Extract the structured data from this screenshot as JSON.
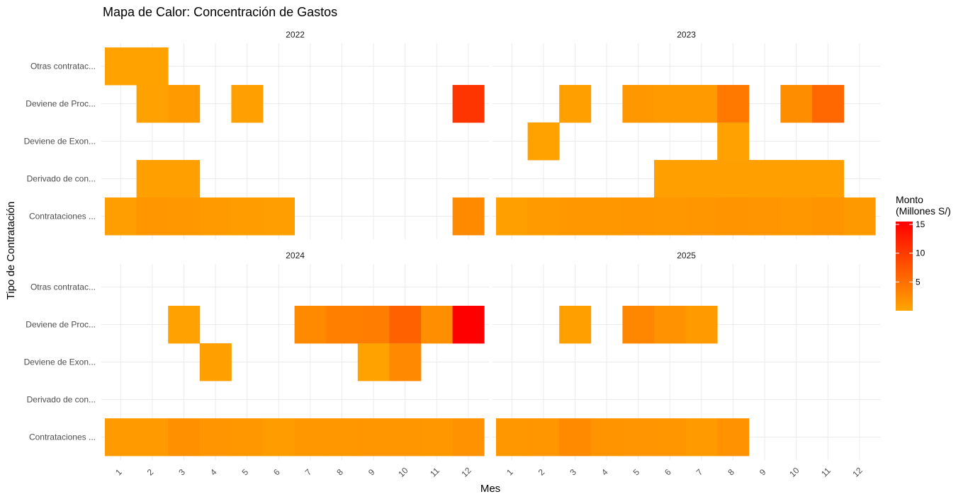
{
  "chart_data": {
    "type": "heatmap",
    "title": "Mapa de Calor: Concentración de Gastos",
    "xlabel": "Mes",
    "ylabel": "Tipo de Contratación",
    "x_categories": [
      "1",
      "2",
      "3",
      "4",
      "5",
      "6",
      "7",
      "8",
      "9",
      "10",
      "11",
      "12"
    ],
    "y_categories": [
      "Otras contratac...",
      "Deviene de Proc...",
      "Deviene de Exon...",
      "Derivado de con...",
      "Contrataciones ..."
    ],
    "legend": {
      "title": "Monto\n(Millones S/)",
      "ticks": [
        5,
        10,
        15
      ],
      "min": 0,
      "max": 15.5,
      "low_color": "#FFA500",
      "high_color": "#FF0000",
      "placement": "right"
    },
    "panels": [
      {
        "label": "2022",
        "cells": [
          {
            "type": "Otras contratac...",
            "month": 1,
            "value": 0.3
          },
          {
            "type": "Otras contratac...",
            "month": 2,
            "value": 0.3
          },
          {
            "type": "Deviene de Proc...",
            "month": 2,
            "value": 0.4
          },
          {
            "type": "Deviene de Proc...",
            "month": 3,
            "value": 0.9
          },
          {
            "type": "Deviene de Proc...",
            "month": 5,
            "value": 0.6
          },
          {
            "type": "Deviene de Proc...",
            "month": 12,
            "value": 10.5
          },
          {
            "type": "Derivado de con...",
            "month": 2,
            "value": 0.5
          },
          {
            "type": "Derivado de con...",
            "month": 3,
            "value": 0.5
          },
          {
            "type": "Contrataciones ...",
            "month": 1,
            "value": 0.7
          },
          {
            "type": "Contrataciones ...",
            "month": 2,
            "value": 1.4
          },
          {
            "type": "Contrataciones ...",
            "month": 3,
            "value": 1.2
          },
          {
            "type": "Contrataciones ...",
            "month": 4,
            "value": 0.9
          },
          {
            "type": "Contrataciones ...",
            "month": 5,
            "value": 0.8
          },
          {
            "type": "Contrataciones ...",
            "month": 6,
            "value": 0.7
          },
          {
            "type": "Contrataciones ...",
            "month": 12,
            "value": 2.5
          }
        ]
      },
      {
        "label": "2023",
        "cells": [
          {
            "type": "Deviene de Proc...",
            "month": 3,
            "value": 0.5
          },
          {
            "type": "Deviene de Proc...",
            "month": 5,
            "value": 1.2
          },
          {
            "type": "Deviene de Proc...",
            "month": 6,
            "value": 0.9
          },
          {
            "type": "Deviene de Proc...",
            "month": 7,
            "value": 0.9
          },
          {
            "type": "Deviene de Proc...",
            "month": 8,
            "value": 4.2
          },
          {
            "type": "Deviene de Proc...",
            "month": 10,
            "value": 2.3
          },
          {
            "type": "Deviene de Proc...",
            "month": 11,
            "value": 5.8
          },
          {
            "type": "Deviene de Exon...",
            "month": 2,
            "value": 0.3
          },
          {
            "type": "Deviene de Exon...",
            "month": 8,
            "value": 0.4
          },
          {
            "type": "Derivado de con...",
            "month": 6,
            "value": 0.5
          },
          {
            "type": "Derivado de con...",
            "month": 7,
            "value": 0.5
          },
          {
            "type": "Derivado de con...",
            "month": 8,
            "value": 0.6
          },
          {
            "type": "Derivado de con...",
            "month": 9,
            "value": 0.5
          },
          {
            "type": "Derivado de con...",
            "month": 10,
            "value": 0.5
          },
          {
            "type": "Derivado de con...",
            "month": 11,
            "value": 0.5
          },
          {
            "type": "Contrataciones ...",
            "month": 1,
            "value": 0.6
          },
          {
            "type": "Contrataciones ...",
            "month": 2,
            "value": 0.9
          },
          {
            "type": "Contrataciones ...",
            "month": 3,
            "value": 1.2
          },
          {
            "type": "Contrataciones ...",
            "month": 4,
            "value": 1.3
          },
          {
            "type": "Contrataciones ...",
            "month": 5,
            "value": 1.4
          },
          {
            "type": "Contrataciones ...",
            "month": 6,
            "value": 1.3
          },
          {
            "type": "Contrataciones ...",
            "month": 7,
            "value": 1.4
          },
          {
            "type": "Contrataciones ...",
            "month": 8,
            "value": 1.6
          },
          {
            "type": "Contrataciones ...",
            "month": 9,
            "value": 1.5
          },
          {
            "type": "Contrataciones ...",
            "month": 10,
            "value": 1.3
          },
          {
            "type": "Contrataciones ...",
            "month": 11,
            "value": 1.7
          },
          {
            "type": "Contrataciones ...",
            "month": 12,
            "value": 1.1
          }
        ]
      },
      {
        "label": "2024",
        "cells": [
          {
            "type": "Deviene de Proc...",
            "month": 3,
            "value": 0.4
          },
          {
            "type": "Deviene de Proc...",
            "month": 7,
            "value": 2.5
          },
          {
            "type": "Deviene de Proc...",
            "month": 8,
            "value": 3.5
          },
          {
            "type": "Deviene de Proc...",
            "month": 9,
            "value": 3.8
          },
          {
            "type": "Deviene de Proc...",
            "month": 10,
            "value": 6.5
          },
          {
            "type": "Deviene de Proc...",
            "month": 11,
            "value": 2.1
          },
          {
            "type": "Deviene de Proc...",
            "month": 12,
            "value": 15.5
          },
          {
            "type": "Deviene de Exon...",
            "month": 4,
            "value": 0.5
          },
          {
            "type": "Deviene de Exon...",
            "month": 9,
            "value": 0.3
          },
          {
            "type": "Deviene de Exon...",
            "month": 10,
            "value": 2.6
          },
          {
            "type": "Contrataciones ...",
            "month": 1,
            "value": 0.9
          },
          {
            "type": "Contrataciones ...",
            "month": 2,
            "value": 1.0
          },
          {
            "type": "Contrataciones ...",
            "month": 3,
            "value": 1.9
          },
          {
            "type": "Contrataciones ...",
            "month": 4,
            "value": 1.5
          },
          {
            "type": "Contrataciones ...",
            "month": 5,
            "value": 1.2
          },
          {
            "type": "Contrataciones ...",
            "month": 6,
            "value": 0.8
          },
          {
            "type": "Contrataciones ...",
            "month": 7,
            "value": 1.2
          },
          {
            "type": "Contrataciones ...",
            "month": 8,
            "value": 1.3
          },
          {
            "type": "Contrataciones ...",
            "month": 9,
            "value": 1.4
          },
          {
            "type": "Contrataciones ...",
            "month": 10,
            "value": 1.4
          },
          {
            "type": "Contrataciones ...",
            "month": 11,
            "value": 1.3
          },
          {
            "type": "Contrataciones ...",
            "month": 12,
            "value": 1.8
          }
        ]
      },
      {
        "label": "2025",
        "cells": [
          {
            "type": "Deviene de Proc...",
            "month": 3,
            "value": 0.5
          },
          {
            "type": "Deviene de Proc...",
            "month": 5,
            "value": 2.8
          },
          {
            "type": "Deviene de Proc...",
            "month": 6,
            "value": 1.8
          },
          {
            "type": "Deviene de Proc...",
            "month": 7,
            "value": 0.9
          },
          {
            "type": "Contrataciones ...",
            "month": 1,
            "value": 1.2
          },
          {
            "type": "Contrataciones ...",
            "month": 2,
            "value": 1.4
          },
          {
            "type": "Contrataciones ...",
            "month": 3,
            "value": 2.5
          },
          {
            "type": "Contrataciones ...",
            "month": 4,
            "value": 1.6
          },
          {
            "type": "Contrataciones ...",
            "month": 5,
            "value": 1.5
          },
          {
            "type": "Contrataciones ...",
            "month": 6,
            "value": 1.4
          },
          {
            "type": "Contrataciones ...",
            "month": 7,
            "value": 0.9
          },
          {
            "type": "Contrataciones ...",
            "month": 8,
            "value": 1.8
          }
        ]
      }
    ]
  }
}
